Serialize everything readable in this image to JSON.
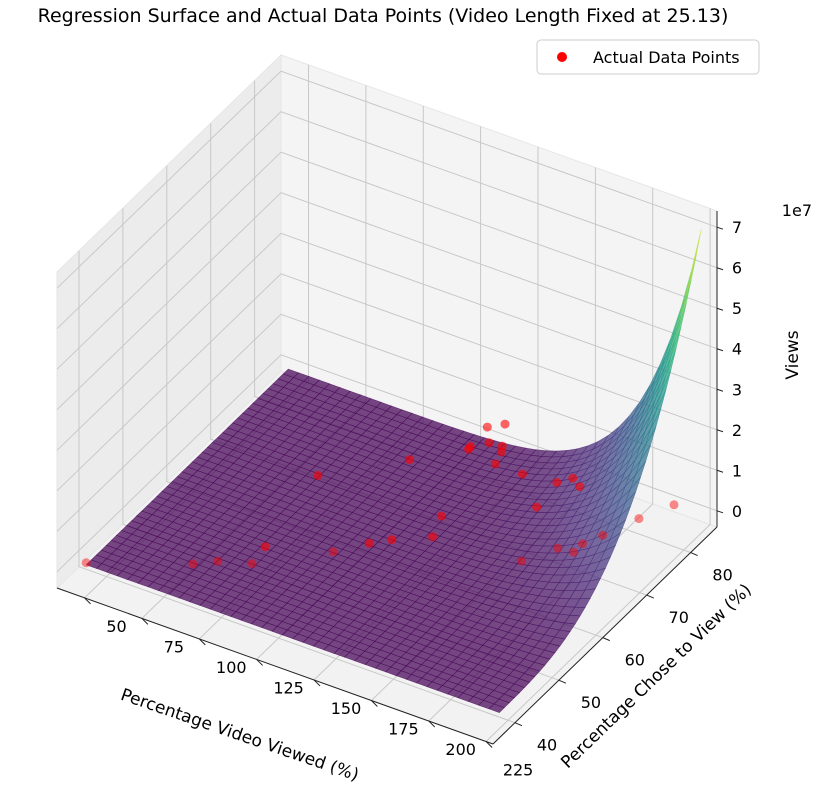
{
  "chart_data": {
    "type": "scatter",
    "title": "Regression Surface and Actual Data Points (Video Length Fixed at 25.13)",
    "xlabel": "Percentage Video Viewed (%)",
    "ylabel": "Percentage Chose to View (%)",
    "zlabel": "Views",
    "z_offset_label": "1e7",
    "xlim": [
      38,
      228
    ],
    "ylim": [
      35,
      86
    ],
    "zlim": [
      -0.4,
      7.4
    ],
    "x_ticks": [
      50,
      75,
      100,
      125,
      150,
      175,
      200,
      225
    ],
    "y_ticks": [
      40,
      50,
      60,
      70,
      80
    ],
    "z_ticks": [
      0,
      1,
      2,
      3,
      4,
      5,
      6,
      7
    ],
    "x_tick_labels": [
      "50",
      "75",
      "100",
      "125",
      "150",
      "175",
      "200",
      "225"
    ],
    "y_tick_labels": [
      "40",
      "50",
      "60",
      "70",
      "80"
    ],
    "z_tick_labels": [
      "0",
      "1",
      "2",
      "3",
      "4",
      "5",
      "6",
      "7"
    ],
    "surface_colormap": "viridis",
    "surface_x_range": [
      45,
      225
    ],
    "surface_y_range": [
      38,
      84
    ],
    "legend": {
      "label": "Actual Data Points",
      "position": "top-right",
      "marker_color": "#ff0000"
    },
    "series": [
      {
        "name": "Actual Data Points",
        "color": "#ff0000",
        "points": [
          [
            45,
            38,
            0.05
          ],
          [
            80,
            44,
            0.1
          ],
          [
            87,
            46,
            0.1
          ],
          [
            100,
            47,
            0.2
          ],
          [
            100,
            50,
            0.3
          ],
          [
            122,
            54,
            0.2
          ],
          [
            132,
            57,
            0.3
          ],
          [
            138,
            59,
            0.3
          ],
          [
            150,
            62,
            0.3
          ],
          [
            100,
            62,
            0.8
          ],
          [
            150,
            64,
            0.6
          ],
          [
            185,
            64,
            0.2
          ],
          [
            195,
            67,
            0.4
          ],
          [
            200,
            68,
            0.3
          ],
          [
            205,
            72,
            0.4
          ],
          [
            215,
            75,
            0.7
          ],
          [
            180,
            70,
            0.8
          ],
          [
            185,
            72,
            1.3
          ],
          [
            190,
            73,
            1.4
          ],
          [
            195,
            72,
            1.4
          ],
          [
            170,
            72,
            1.2
          ],
          [
            162,
            70,
            1.5
          ],
          [
            155,
            68,
            2.0
          ],
          [
            165,
            70,
            2.0
          ],
          [
            158,
            66,
            2.2
          ],
          [
            165,
            67,
            2.4
          ],
          [
            172,
            67,
            3.0
          ],
          [
            140,
            62,
            2.0
          ],
          [
            170,
            64,
            3.2
          ],
          [
            180,
            62,
            3.0
          ],
          [
            200,
            70,
            0.3
          ],
          [
            215,
            83,
            0.2
          ]
        ]
      }
    ],
    "grid": true
  }
}
